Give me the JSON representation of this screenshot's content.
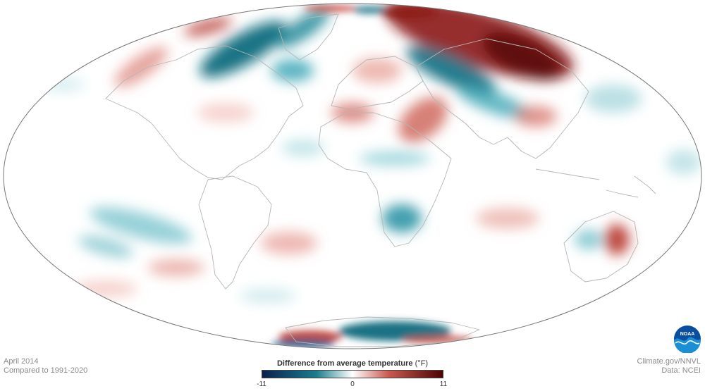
{
  "map": {
    "type": "global temperature anomaly map",
    "projection": "Mollweide",
    "colors": {
      "cold_extreme": "#0b1f4d",
      "cold": "#1a7d8c",
      "neutral": "#ffffff",
      "warm": "#c85a4f",
      "warm_extreme": "#4a0404",
      "land_outline": "#b5b5b5",
      "globe_outline": "#777777"
    }
  },
  "date": "April 2014",
  "comparison": "Compared to 1991-2020",
  "credit": {
    "site": "Climate.gov/NNVL",
    "data": "Data: NCEI"
  },
  "legend": {
    "title": "Difference from average temperature",
    "unit": "(°F)",
    "min_label": "-11",
    "mid_label": "0",
    "max_label": "11",
    "min": -11,
    "max": 11
  },
  "logo": {
    "text": "NOAA"
  }
}
